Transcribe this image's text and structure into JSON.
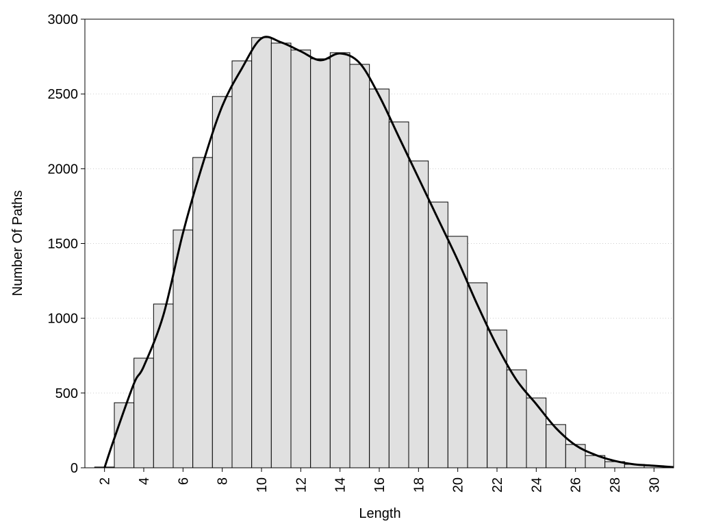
{
  "chart_data": {
    "type": "histogram",
    "x_label": "Length",
    "y_label": "Number Of Paths",
    "bins": [
      1.5,
      2.5,
      3.5,
      4.5,
      5.5,
      6.5,
      7.5,
      8.5,
      9.5,
      10.5,
      11.5,
      12.5,
      13.5,
      14.5,
      15.5,
      16.5,
      17.5,
      18.5,
      19.5,
      20.5,
      21.5,
      22.5,
      23.5,
      24.5,
      25.5,
      26.5,
      27.5,
      28.5,
      29.5,
      30.5
    ],
    "counts": [
      5,
      435,
      733,
      1095,
      1590,
      2075,
      2483,
      2721,
      2877,
      2840,
      2794,
      2735,
      2776,
      2698,
      2533,
      2313,
      2052,
      1777,
      1548,
      1237,
      921,
      655,
      467,
      289,
      156,
      82,
      41,
      23,
      14
    ],
    "color": "#e0e0e0",
    "curve": {
      "color": "#000000",
      "x": [
        2,
        2.5,
        3.5,
        4,
        5,
        6,
        7,
        8,
        9,
        10,
        11,
        12,
        13,
        14,
        15,
        16,
        17,
        18,
        19,
        20,
        21,
        22,
        23,
        24,
        25,
        26,
        27,
        28,
        29,
        30,
        31
      ],
      "values": [
        0,
        197,
        563,
        678,
        1021,
        1571,
        2029,
        2419,
        2671,
        2872,
        2845,
        2785,
        2725,
        2771,
        2707,
        2487,
        2212,
        1938,
        1663,
        1388,
        1090,
        815,
        586,
        426,
        266,
        151,
        87,
        46,
        23,
        14,
        4
      ]
    },
    "xlim": [
      1,
      31
    ],
    "xticks": [
      2,
      4,
      6,
      8,
      10,
      12,
      14,
      16,
      18,
      20,
      22,
      24,
      26,
      28,
      30
    ],
    "ylim": [
      0,
      3000
    ],
    "yticks": [
      0,
      500,
      1000,
      1500,
      2000,
      2500,
      3000
    ],
    "grid": true
  }
}
